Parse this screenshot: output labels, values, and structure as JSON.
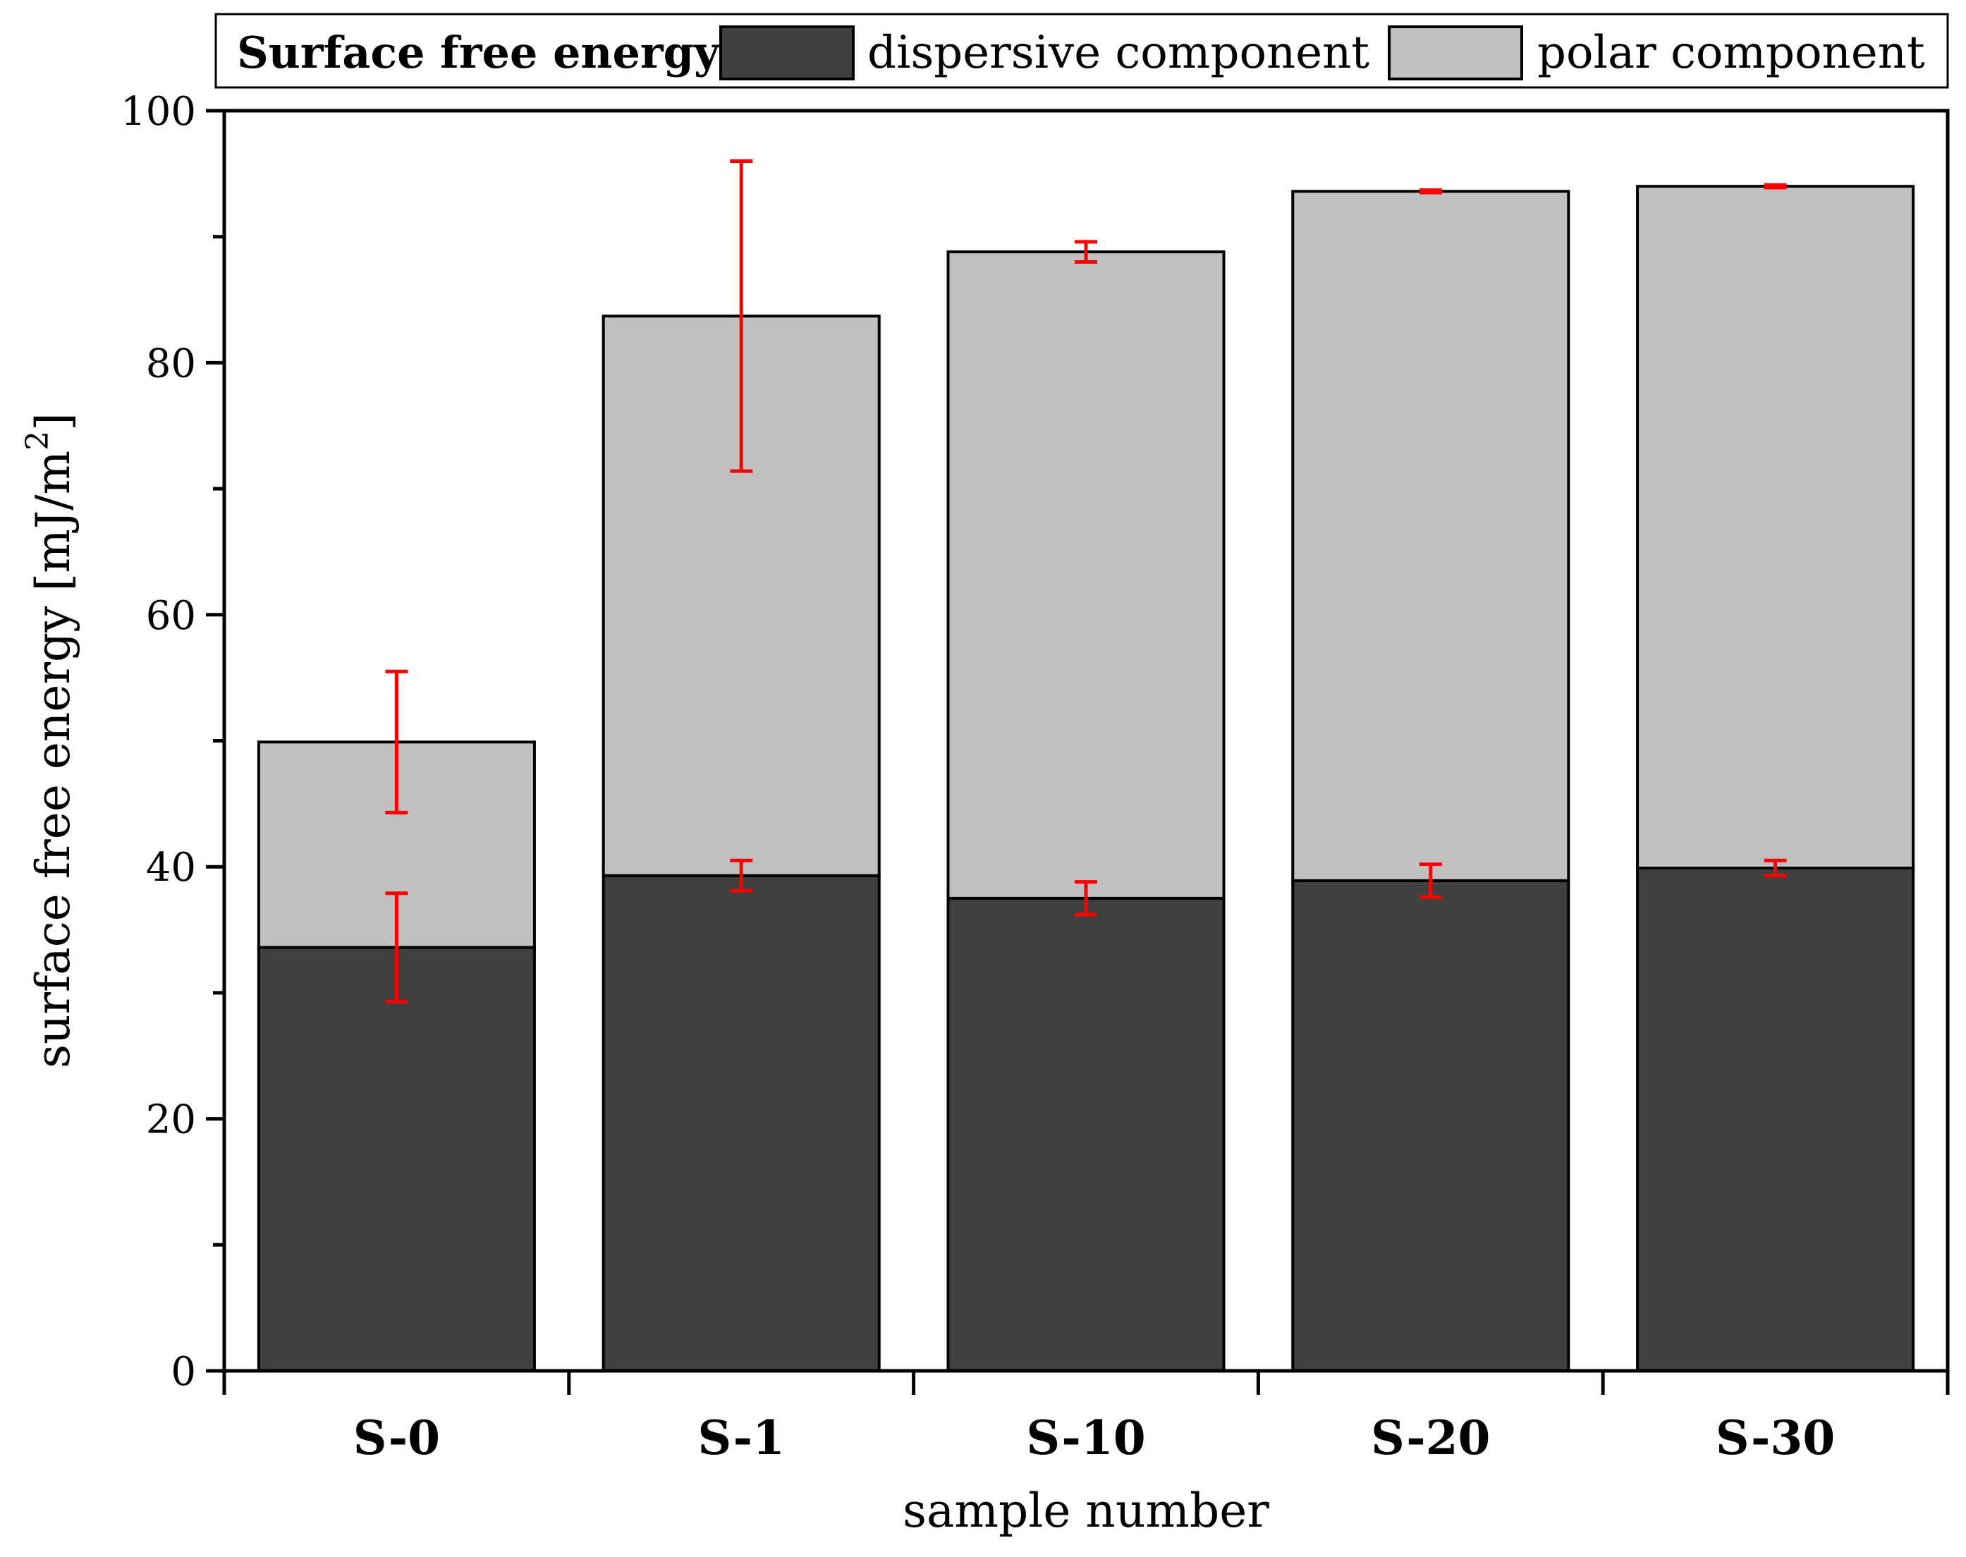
{
  "colors": {
    "dispersive": "#404040",
    "polar": "#c0c0c0",
    "error_bar": "#ff0000",
    "axis": "#000000"
  },
  "legend": {
    "title": "Surface free energy:",
    "entries": [
      {
        "label": "dispersive component",
        "series": "dispersive"
      },
      {
        "label": "polar component",
        "series": "polar"
      }
    ]
  },
  "chart_data": {
    "type": "bar",
    "stacked": true,
    "title": "",
    "xlabel": "sample number",
    "ylabel": "surface free energy [mJ/m",
    "ylabel_superscript": "2",
    "ylabel_suffix": "]",
    "ylim": [
      0,
      100
    ],
    "yticks": [
      0,
      20,
      40,
      60,
      80,
      100
    ],
    "ytick_labels": [
      "0",
      "20",
      "40",
      "60",
      "80",
      "100"
    ],
    "categories": [
      "S-0",
      "S-1",
      "S-10",
      "S-20",
      "S-30"
    ],
    "series": [
      {
        "name": "dispersive component",
        "key": "dispersive",
        "values": [
          33.6,
          39.3,
          37.5,
          38.9,
          39.9
        ],
        "errors": [
          4.3,
          1.2,
          1.3,
          1.3,
          0.6
        ]
      },
      {
        "name": "polar component",
        "key": "polar",
        "values": [
          16.3,
          44.4,
          51.3,
          54.7,
          54.1
        ],
        "errors": [
          5.6,
          12.3,
          0.8,
          0.1,
          0.1
        ]
      }
    ],
    "grid": false,
    "legend_position": "top"
  }
}
